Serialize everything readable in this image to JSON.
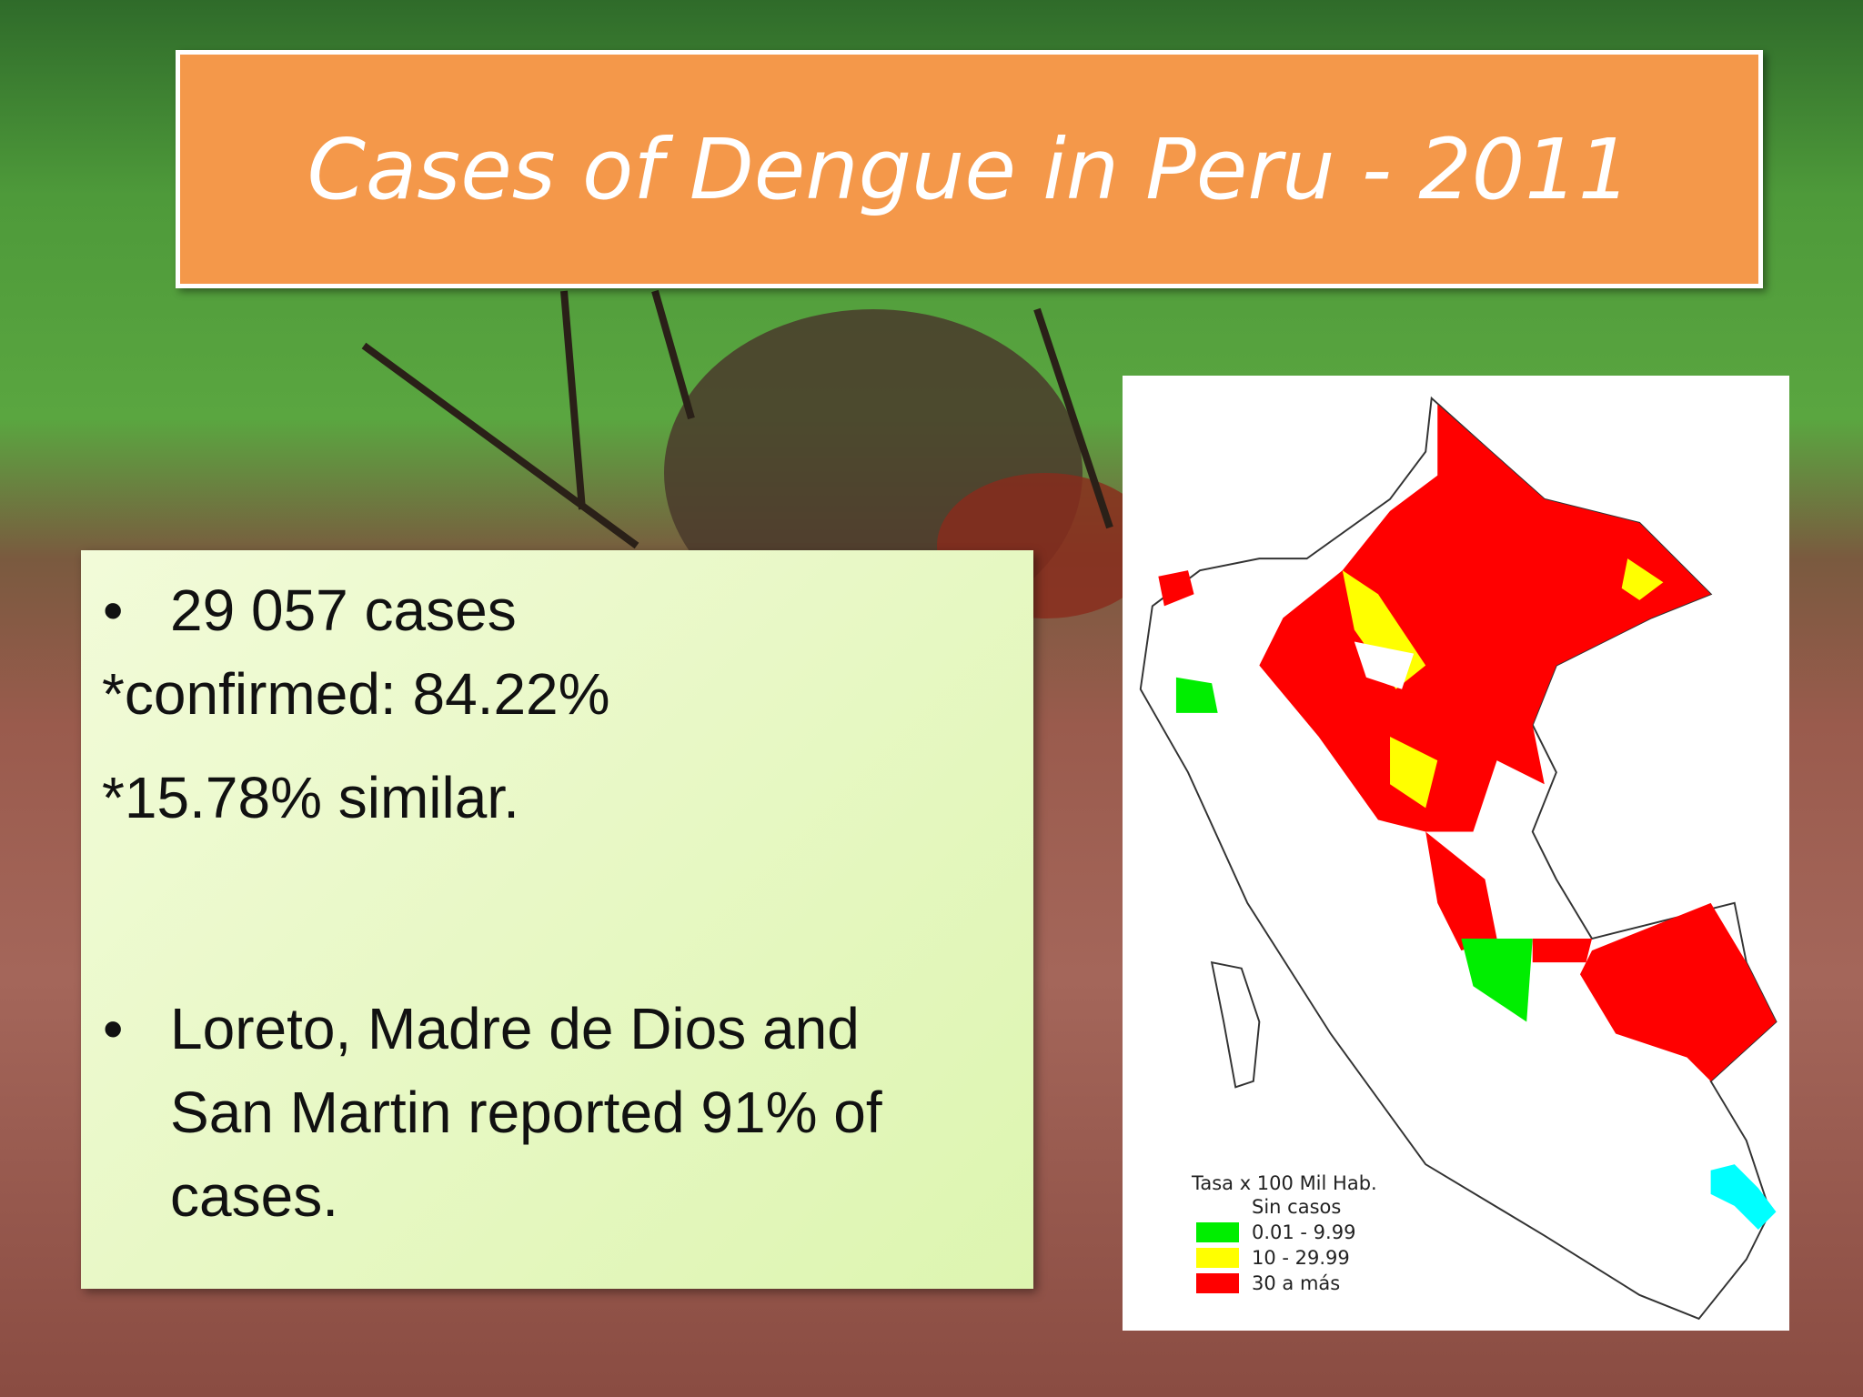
{
  "title": "Cases of Dengue in Peru - 2011",
  "body": {
    "lines": [
      {
        "text": "29 057 cases",
        "bullet": true
      },
      {
        "text": "*confirmed: 84.22%",
        "bullet": false
      },
      {
        "text": "*15.78% similar.",
        "bullet": false
      },
      {
        "text": "Loreto, Madre de Dios and San Martin reported 91% of cases.",
        "bullet": true
      }
    ]
  },
  "map": {
    "legend": {
      "title": "Tasa x 100 Mil Hab.",
      "items": [
        {
          "label": "Sin casos",
          "color": "#ffffff"
        },
        {
          "label": "0.01 - 9.99",
          "color": "#00ee00"
        },
        {
          "label": "10 - 29.99",
          "color": "#ffff00"
        },
        {
          "label": "30 a más",
          "color": "#ff0000"
        }
      ]
    }
  }
}
